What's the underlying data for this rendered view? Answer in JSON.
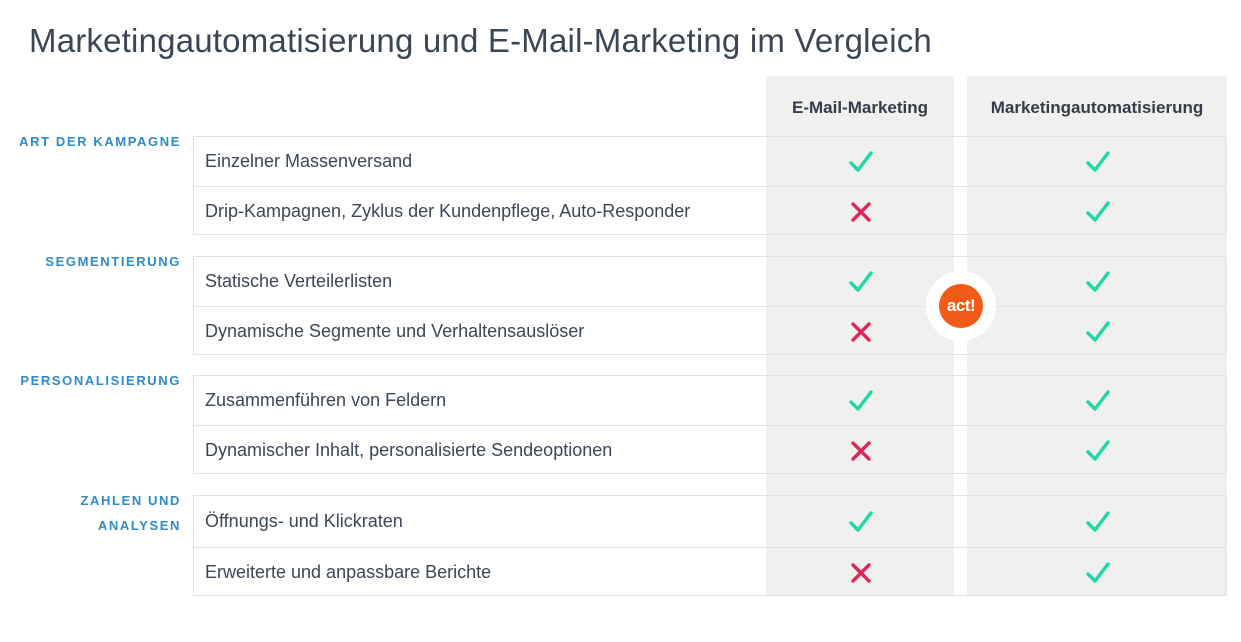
{
  "title": "Marketingautomatisierung und E-Mail-Marketing im Vergleich",
  "columns": [
    "E-Mail-Marketing",
    "Marketingautomatisierung"
  ],
  "logo_text": "act!",
  "colors": {
    "check": "#1ed6a6",
    "cross": "#e0245e",
    "accent": "#2f8bc7",
    "logo": "#f25a17"
  },
  "groups": [
    {
      "label": "ART DER KAMPAGNE",
      "rows": [
        {
          "label": "Einzelner Massenversand",
          "email": "check",
          "automation": "check"
        },
        {
          "label": "Drip-Kampagnen, Zyklus der Kundenpflege, Auto-Responder",
          "email": "cross",
          "automation": "check"
        }
      ]
    },
    {
      "label": "SEGMENTIERUNG",
      "rows": [
        {
          "label": "Statische Verteilerlisten",
          "email": "check",
          "automation": "check"
        },
        {
          "label": "Dynamische Segmente und Verhaltensauslöser",
          "email": "cross",
          "automation": "check"
        }
      ]
    },
    {
      "label": "PERSONALISIERUNG",
      "rows": [
        {
          "label": "Zusammenführen von Feldern",
          "email": "check",
          "automation": "check"
        },
        {
          "label": "Dynamischer Inhalt, personalisierte Sendeoptionen",
          "email": "cross",
          "automation": "check"
        }
      ]
    },
    {
      "label_lines": [
        "ZAHLEN UND",
        "ANALYSEN"
      ],
      "rows": [
        {
          "label": "Öffnungs- und Klickraten",
          "email": "check",
          "automation": "check"
        },
        {
          "label": "Erweiterte und anpassbare Berichte",
          "email": "cross",
          "automation": "check"
        }
      ]
    }
  ]
}
